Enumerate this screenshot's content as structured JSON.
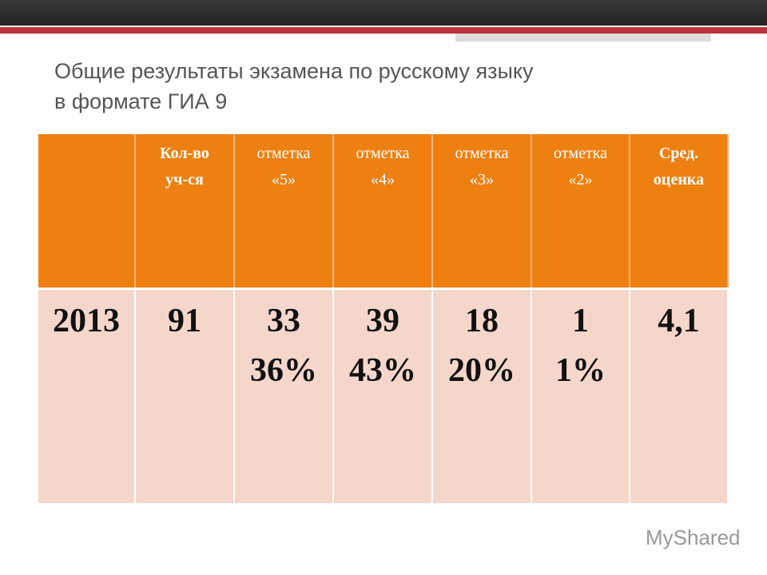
{
  "title": [
    "Общие результаты экзамена по русскому языку",
    "в формате ГИА 9"
  ],
  "table": {
    "headers": [
      [
        "Кол-во",
        "уч-ся"
      ],
      [
        "отметка",
        "«5»"
      ],
      [
        "отметка",
        "«4»"
      ],
      [
        "отметка",
        "«3»"
      ],
      [
        "отметка",
        "«2»"
      ],
      [
        "Сред.",
        "оценка"
      ]
    ],
    "rows": [
      [
        [
          "2013"
        ],
        [
          "91"
        ],
        [
          "33",
          "36%"
        ],
        [
          "39",
          "43%"
        ],
        [
          "18",
          "20%"
        ],
        [
          "1",
          "1%"
        ],
        [
          "4,1"
        ]
      ]
    ]
  },
  "watermark": "MyShared"
}
